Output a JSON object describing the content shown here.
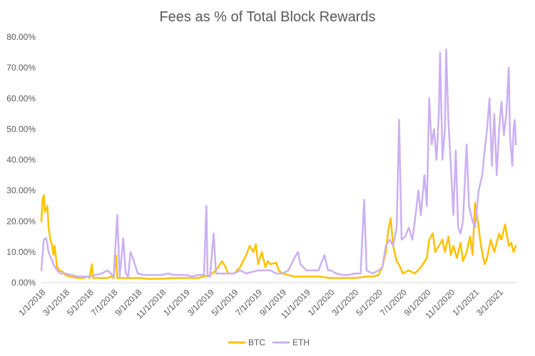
{
  "chart_data": {
    "type": "line",
    "title": "Fees as % of Total Block Rewards",
    "xlabel": "",
    "ylabel": "",
    "ylim": [
      0,
      80
    ],
    "y_ticks": [
      0,
      10,
      20,
      30,
      40,
      50,
      60,
      70,
      80
    ],
    "y_tick_labels": [
      "0.00%",
      "10.00%",
      "20.00%",
      "30.00%",
      "40.00%",
      "50.00%",
      "60.00%",
      "70.00%",
      "80.00%"
    ],
    "x_range_months": [
      0,
      39.5
    ],
    "x_ticks": [
      0,
      2,
      4,
      6,
      8,
      10,
      12,
      14,
      16,
      18,
      20,
      22,
      24,
      26,
      28,
      30,
      32,
      34,
      36,
      38
    ],
    "x_tick_labels": [
      "1/1/2018",
      "3/1/2018",
      "5/1/2018",
      "7/1/2018",
      "9/1/2018",
      "11/1/2018",
      "1/1/2019",
      "3/1/2019",
      "5/1/2019",
      "7/1/2019",
      "9/1/2019",
      "11/1/2019",
      "1/1/2020",
      "3/1/2020",
      "5/1/2020",
      "7/1/2020",
      "9/1/2020",
      "11/1/2020",
      "1/1/2021",
      "3/1/2021"
    ],
    "x_unit": "months since 1/1/2018",
    "legend_position": "bottom",
    "grid": false,
    "series": [
      {
        "name": "BTC",
        "color": "#FFC000",
        "points": [
          [
            0,
            20
          ],
          [
            0.1,
            27
          ],
          [
            0.2,
            28.5
          ],
          [
            0.3,
            23
          ],
          [
            0.5,
            25
          ],
          [
            0.6,
            18
          ],
          [
            0.75,
            14
          ],
          [
            0.9,
            12
          ],
          [
            1.0,
            9
          ],
          [
            1.1,
            12
          ],
          [
            1.3,
            5
          ],
          [
            1.5,
            4
          ],
          [
            1.8,
            3.5
          ],
          [
            2,
            2.5
          ],
          [
            2.3,
            2
          ],
          [
            2.6,
            1.8
          ],
          [
            3,
            1.5
          ],
          [
            3.5,
            1.5
          ],
          [
            3.8,
            2
          ],
          [
            4,
            1.5
          ],
          [
            4.2,
            6
          ],
          [
            4.3,
            1.5
          ],
          [
            5,
            1.5
          ],
          [
            5.5,
            1.5
          ],
          [
            5.8,
            2
          ],
          [
            6,
            1.5
          ],
          [
            6.2,
            9
          ],
          [
            6.3,
            1.5
          ],
          [
            7,
            1.5
          ],
          [
            8,
            1.5
          ],
          [
            9,
            1.2
          ],
          [
            10,
            1.3
          ],
          [
            11,
            1.5
          ],
          [
            12,
            1.5
          ],
          [
            13,
            1.5
          ],
          [
            13.5,
            2
          ],
          [
            14,
            2.5
          ],
          [
            14.5,
            4
          ],
          [
            15,
            7
          ],
          [
            15.3,
            5
          ],
          [
            15.5,
            3
          ],
          [
            16,
            3
          ],
          [
            16.5,
            5
          ],
          [
            17,
            9
          ],
          [
            17.3,
            12
          ],
          [
            17.6,
            10
          ],
          [
            17.8,
            12.5
          ],
          [
            18,
            6
          ],
          [
            18.3,
            10
          ],
          [
            18.6,
            5
          ],
          [
            18.8,
            7
          ],
          [
            19.0,
            6
          ],
          [
            19.5,
            6.5
          ],
          [
            19.7,
            4
          ],
          [
            20,
            3
          ],
          [
            21,
            2
          ],
          [
            22,
            2
          ],
          [
            23,
            2
          ],
          [
            24,
            1.5
          ],
          [
            25,
            1.5
          ],
          [
            25.5,
            1.5
          ],
          [
            26,
            1.5
          ],
          [
            27,
            2
          ],
          [
            27.5,
            2
          ],
          [
            28,
            2.5
          ],
          [
            28.3,
            5
          ],
          [
            28.6,
            10
          ],
          [
            28.8,
            17
          ],
          [
            29.0,
            21
          ],
          [
            29.2,
            12
          ],
          [
            29.5,
            7
          ],
          [
            29.8,
            5
          ],
          [
            30,
            3
          ],
          [
            30.5,
            4
          ],
          [
            31,
            3
          ],
          [
            31.5,
            5
          ],
          [
            32,
            8
          ],
          [
            32.2,
            14
          ],
          [
            32.5,
            16
          ],
          [
            32.7,
            10
          ],
          [
            33,
            12
          ],
          [
            33.3,
            14
          ],
          [
            33.5,
            10
          ],
          [
            33.8,
            15
          ],
          [
            34,
            9
          ],
          [
            34.2,
            12
          ],
          [
            34.5,
            8
          ],
          [
            34.8,
            13
          ],
          [
            35,
            7
          ],
          [
            35.3,
            10
          ],
          [
            35.6,
            15
          ],
          [
            35.8,
            9
          ],
          [
            36,
            26
          ],
          [
            36.2,
            21
          ],
          [
            36.5,
            12
          ],
          [
            36.8,
            6
          ],
          [
            37,
            8
          ],
          [
            37.3,
            14
          ],
          [
            37.6,
            10
          ],
          [
            38,
            16
          ],
          [
            38.2,
            14
          ],
          [
            38.5,
            19
          ],
          [
            38.8,
            12
          ],
          [
            39,
            13
          ],
          [
            39.2,
            10
          ],
          [
            39.4,
            12
          ]
        ]
      },
      {
        "name": "ETH",
        "color": "#CBB0F2",
        "points": [
          [
            0,
            4
          ],
          [
            0.2,
            14
          ],
          [
            0.4,
            14.5
          ],
          [
            0.6,
            10
          ],
          [
            0.8,
            8
          ],
          [
            1,
            6
          ],
          [
            1.3,
            4
          ],
          [
            1.6,
            3
          ],
          [
            2,
            3
          ],
          [
            2.5,
            2.5
          ],
          [
            3,
            2
          ],
          [
            3.5,
            2
          ],
          [
            4,
            2
          ],
          [
            4.5,
            2.5
          ],
          [
            5,
            3
          ],
          [
            5.5,
            4
          ],
          [
            6,
            2
          ],
          [
            6.3,
            22
          ],
          [
            6.5,
            2
          ],
          [
            6.8,
            14.5
          ],
          [
            7,
            3
          ],
          [
            7.2,
            2
          ],
          [
            7.4,
            10
          ],
          [
            7.6,
            8
          ],
          [
            8,
            3
          ],
          [
            8.5,
            2.5
          ],
          [
            9,
            2.5
          ],
          [
            9.5,
            2.5
          ],
          [
            10,
            2.5
          ],
          [
            10.5,
            3
          ],
          [
            11,
            2.5
          ],
          [
            11.5,
            2.5
          ],
          [
            12,
            2.5
          ],
          [
            12.5,
            2
          ],
          [
            13,
            2.5
          ],
          [
            13.5,
            2.5
          ],
          [
            13.7,
            25
          ],
          [
            13.8,
            2
          ],
          [
            14,
            2
          ],
          [
            14.3,
            16
          ],
          [
            14.5,
            3
          ],
          [
            15,
            3
          ],
          [
            15.5,
            3
          ],
          [
            16,
            3
          ],
          [
            16.5,
            4
          ],
          [
            17,
            3
          ],
          [
            17.5,
            3.5
          ],
          [
            18,
            4
          ],
          [
            18.5,
            4
          ],
          [
            19,
            4
          ],
          [
            19.5,
            3
          ],
          [
            20,
            3
          ],
          [
            20.5,
            4
          ],
          [
            21,
            8
          ],
          [
            21.3,
            10
          ],
          [
            21.5,
            6
          ],
          [
            22,
            4
          ],
          [
            22.5,
            4
          ],
          [
            23,
            4
          ],
          [
            23.5,
            9
          ],
          [
            23.8,
            4
          ],
          [
            24,
            4
          ],
          [
            24.5,
            3
          ],
          [
            25,
            2.5
          ],
          [
            25.5,
            2.5
          ],
          [
            26,
            3
          ],
          [
            26.5,
            3
          ],
          [
            26.8,
            27
          ],
          [
            27,
            4
          ],
          [
            27.5,
            3
          ],
          [
            28,
            4
          ],
          [
            28.3,
            5
          ],
          [
            28.6,
            12
          ],
          [
            28.9,
            14
          ],
          [
            29.2,
            12
          ],
          [
            29.5,
            18
          ],
          [
            29.7,
            53
          ],
          [
            29.9,
            14
          ],
          [
            30.2,
            15
          ],
          [
            30.5,
            18
          ],
          [
            30.8,
            14
          ],
          [
            31.0,
            20
          ],
          [
            31.3,
            30
          ],
          [
            31.5,
            22
          ],
          [
            31.8,
            35
          ],
          [
            32.0,
            25
          ],
          [
            32.2,
            60
          ],
          [
            32.4,
            45
          ],
          [
            32.6,
            50
          ],
          [
            32.8,
            40
          ],
          [
            33.0,
            55
          ],
          [
            33.1,
            75
          ],
          [
            33.3,
            40
          ],
          [
            33.5,
            50
          ],
          [
            33.6,
            76
          ],
          [
            33.8,
            52
          ],
          [
            34.0,
            38
          ],
          [
            34.2,
            22
          ],
          [
            34.4,
            43
          ],
          [
            34.6,
            18
          ],
          [
            34.8,
            16
          ],
          [
            35.0,
            20
          ],
          [
            35.3,
            45
          ],
          [
            35.5,
            25
          ],
          [
            35.8,
            20
          ],
          [
            36.0,
            18
          ],
          [
            36.3,
            30
          ],
          [
            36.6,
            35
          ],
          [
            36.8,
            43
          ],
          [
            37.0,
            50
          ],
          [
            37.2,
            60
          ],
          [
            37.4,
            38
          ],
          [
            37.6,
            55
          ],
          [
            37.8,
            35
          ],
          [
            38.0,
            50
          ],
          [
            38.2,
            59
          ],
          [
            38.4,
            48
          ],
          [
            38.6,
            55
          ],
          [
            38.8,
            70
          ],
          [
            38.9,
            48
          ],
          [
            39.1,
            38
          ],
          [
            39.2,
            50
          ],
          [
            39.3,
            53
          ],
          [
            39.4,
            45
          ]
        ]
      }
    ]
  }
}
